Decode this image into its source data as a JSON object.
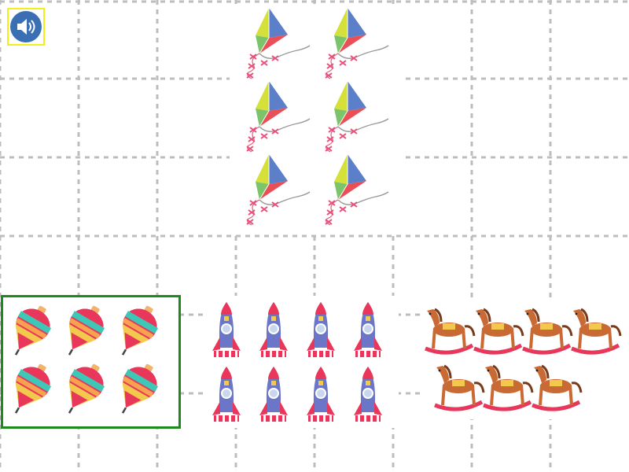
{
  "audio": {
    "icon": "speaker-icon"
  },
  "question": {
    "item": "kite",
    "count": 6,
    "rows": 3,
    "per_row": 2
  },
  "options": [
    {
      "id": "tops",
      "item": "spinning-top",
      "count": 6,
      "rows": [
        3,
        3
      ],
      "selected": true
    },
    {
      "id": "rockets",
      "item": "rocket",
      "count": 8,
      "rows": [
        4,
        4
      ],
      "selected": false
    },
    {
      "id": "horses",
      "item": "rocking-horse",
      "count": 7,
      "rows": [
        4,
        3
      ],
      "selected": false
    }
  ],
  "colors": {
    "grid_line": "#bdbdbd",
    "selection_border": "#1e8a1e",
    "audio_highlight": "#f2ef1d",
    "audio_button": "#3b6fb3"
  }
}
